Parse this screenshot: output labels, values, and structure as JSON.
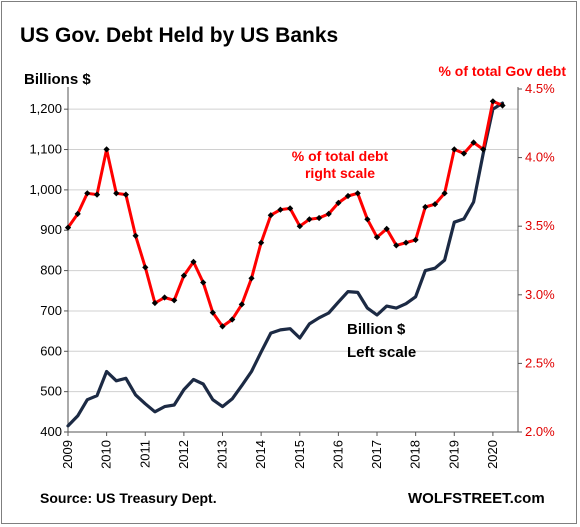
{
  "header": {
    "title": "US Gov. Debt Held by US Banks"
  },
  "footer": {
    "source": "Source: US Treasury Dept.",
    "brand": "WOLFSTREET.com"
  },
  "colors": {
    "billions_line": "#1c2a44",
    "percent_line": "#ff0000",
    "markers": "#000000",
    "grid": "#d0d0d0"
  },
  "chart_data": {
    "type": "line",
    "title": "US Gov. Debt Held by US Banks",
    "left_axis": {
      "label": "Billions  $",
      "ticks": [
        "400",
        "500",
        "600",
        "700",
        "800",
        "900",
        "1,000",
        "1,100",
        "1,200"
      ],
      "ylim": [
        400,
        1250
      ]
    },
    "right_axis": {
      "label": "% of total Gov debt",
      "ticks": [
        "2.0%",
        "2.5%",
        "3.0%",
        "3.5%",
        "4.0%",
        "4.5%"
      ],
      "ylim": [
        2.0,
        4.5
      ]
    },
    "x_axis": {
      "ticks": [
        "2009",
        "2010",
        "2011",
        "2012",
        "2013",
        "2014",
        "2015",
        "2016",
        "2017",
        "2018",
        "2019",
        "2020"
      ],
      "xlim": [
        2009,
        2020.65
      ]
    },
    "grid": "horizontal",
    "annotations": {
      "percent_note_line1": "% of total debt",
      "percent_note_line2": "right scale",
      "billions_note_line1": "Billion $",
      "billions_note_line2": "Left scale"
    },
    "series": [
      {
        "axis": "left",
        "values": [
          [
            2009.0,
            415
          ],
          [
            2009.25,
            440
          ],
          [
            2009.5,
            480
          ],
          [
            2009.75,
            490
          ],
          [
            2010.0,
            550
          ],
          [
            2010.25,
            527
          ],
          [
            2010.5,
            533
          ],
          [
            2010.75,
            492
          ],
          [
            2011.0,
            470
          ],
          [
            2011.25,
            450
          ],
          [
            2011.5,
            463
          ],
          [
            2011.75,
            467
          ],
          [
            2012.0,
            505
          ],
          [
            2012.25,
            530
          ],
          [
            2012.5,
            519
          ],
          [
            2012.75,
            480
          ],
          [
            2013.0,
            463
          ],
          [
            2013.25,
            482
          ],
          [
            2013.5,
            515
          ],
          [
            2013.75,
            550
          ],
          [
            2014.0,
            598
          ],
          [
            2014.25,
            645
          ],
          [
            2014.5,
            653
          ],
          [
            2014.75,
            656
          ],
          [
            2015.0,
            633
          ],
          [
            2015.25,
            668
          ],
          [
            2015.5,
            683
          ],
          [
            2015.75,
            695
          ],
          [
            2016.0,
            722
          ],
          [
            2016.25,
            748
          ],
          [
            2016.5,
            746
          ],
          [
            2016.75,
            707
          ],
          [
            2017.0,
            690
          ],
          [
            2017.25,
            712
          ],
          [
            2017.5,
            707
          ],
          [
            2017.75,
            718
          ],
          [
            2018.0,
            735
          ],
          [
            2018.25,
            800
          ],
          [
            2018.5,
            806
          ],
          [
            2018.75,
            826
          ],
          [
            2019.0,
            920
          ],
          [
            2019.25,
            928
          ],
          [
            2019.5,
            970
          ],
          [
            2019.75,
            1090
          ],
          [
            2020.0,
            1200
          ],
          [
            2020.25,
            1215
          ]
        ]
      },
      {
        "axis": "right",
        "values": [
          [
            2009.0,
            3.49
          ],
          [
            2009.25,
            3.59
          ],
          [
            2009.5,
            3.74
          ],
          [
            2009.75,
            3.73
          ],
          [
            2010.0,
            4.06
          ],
          [
            2010.25,
            3.74
          ],
          [
            2010.5,
            3.73
          ],
          [
            2010.75,
            3.43
          ],
          [
            2011.0,
            3.2
          ],
          [
            2011.25,
            2.94
          ],
          [
            2011.5,
            2.98
          ],
          [
            2011.75,
            2.96
          ],
          [
            2012.0,
            3.14
          ],
          [
            2012.25,
            3.24
          ],
          [
            2012.5,
            3.09
          ],
          [
            2012.75,
            2.87
          ],
          [
            2013.0,
            2.77
          ],
          [
            2013.25,
            2.82
          ],
          [
            2013.5,
            2.93
          ],
          [
            2013.75,
            3.12
          ],
          [
            2014.0,
            3.38
          ],
          [
            2014.25,
            3.58
          ],
          [
            2014.5,
            3.62
          ],
          [
            2014.75,
            3.63
          ],
          [
            2015.0,
            3.5
          ],
          [
            2015.25,
            3.55
          ],
          [
            2015.5,
            3.56
          ],
          [
            2015.75,
            3.59
          ],
          [
            2016.0,
            3.67
          ],
          [
            2016.25,
            3.72
          ],
          [
            2016.5,
            3.74
          ],
          [
            2016.75,
            3.55
          ],
          [
            2017.0,
            3.42
          ],
          [
            2017.25,
            3.48
          ],
          [
            2017.5,
            3.36
          ],
          [
            2017.75,
            3.38
          ],
          [
            2018.0,
            3.4
          ],
          [
            2018.25,
            3.64
          ],
          [
            2018.5,
            3.66
          ],
          [
            2018.75,
            3.74
          ],
          [
            2019.0,
            4.06
          ],
          [
            2019.25,
            4.03
          ],
          [
            2019.5,
            4.11
          ],
          [
            2019.75,
            4.06
          ],
          [
            2020.0,
            4.41
          ],
          [
            2020.25,
            4.38
          ]
        ]
      }
    ]
  }
}
